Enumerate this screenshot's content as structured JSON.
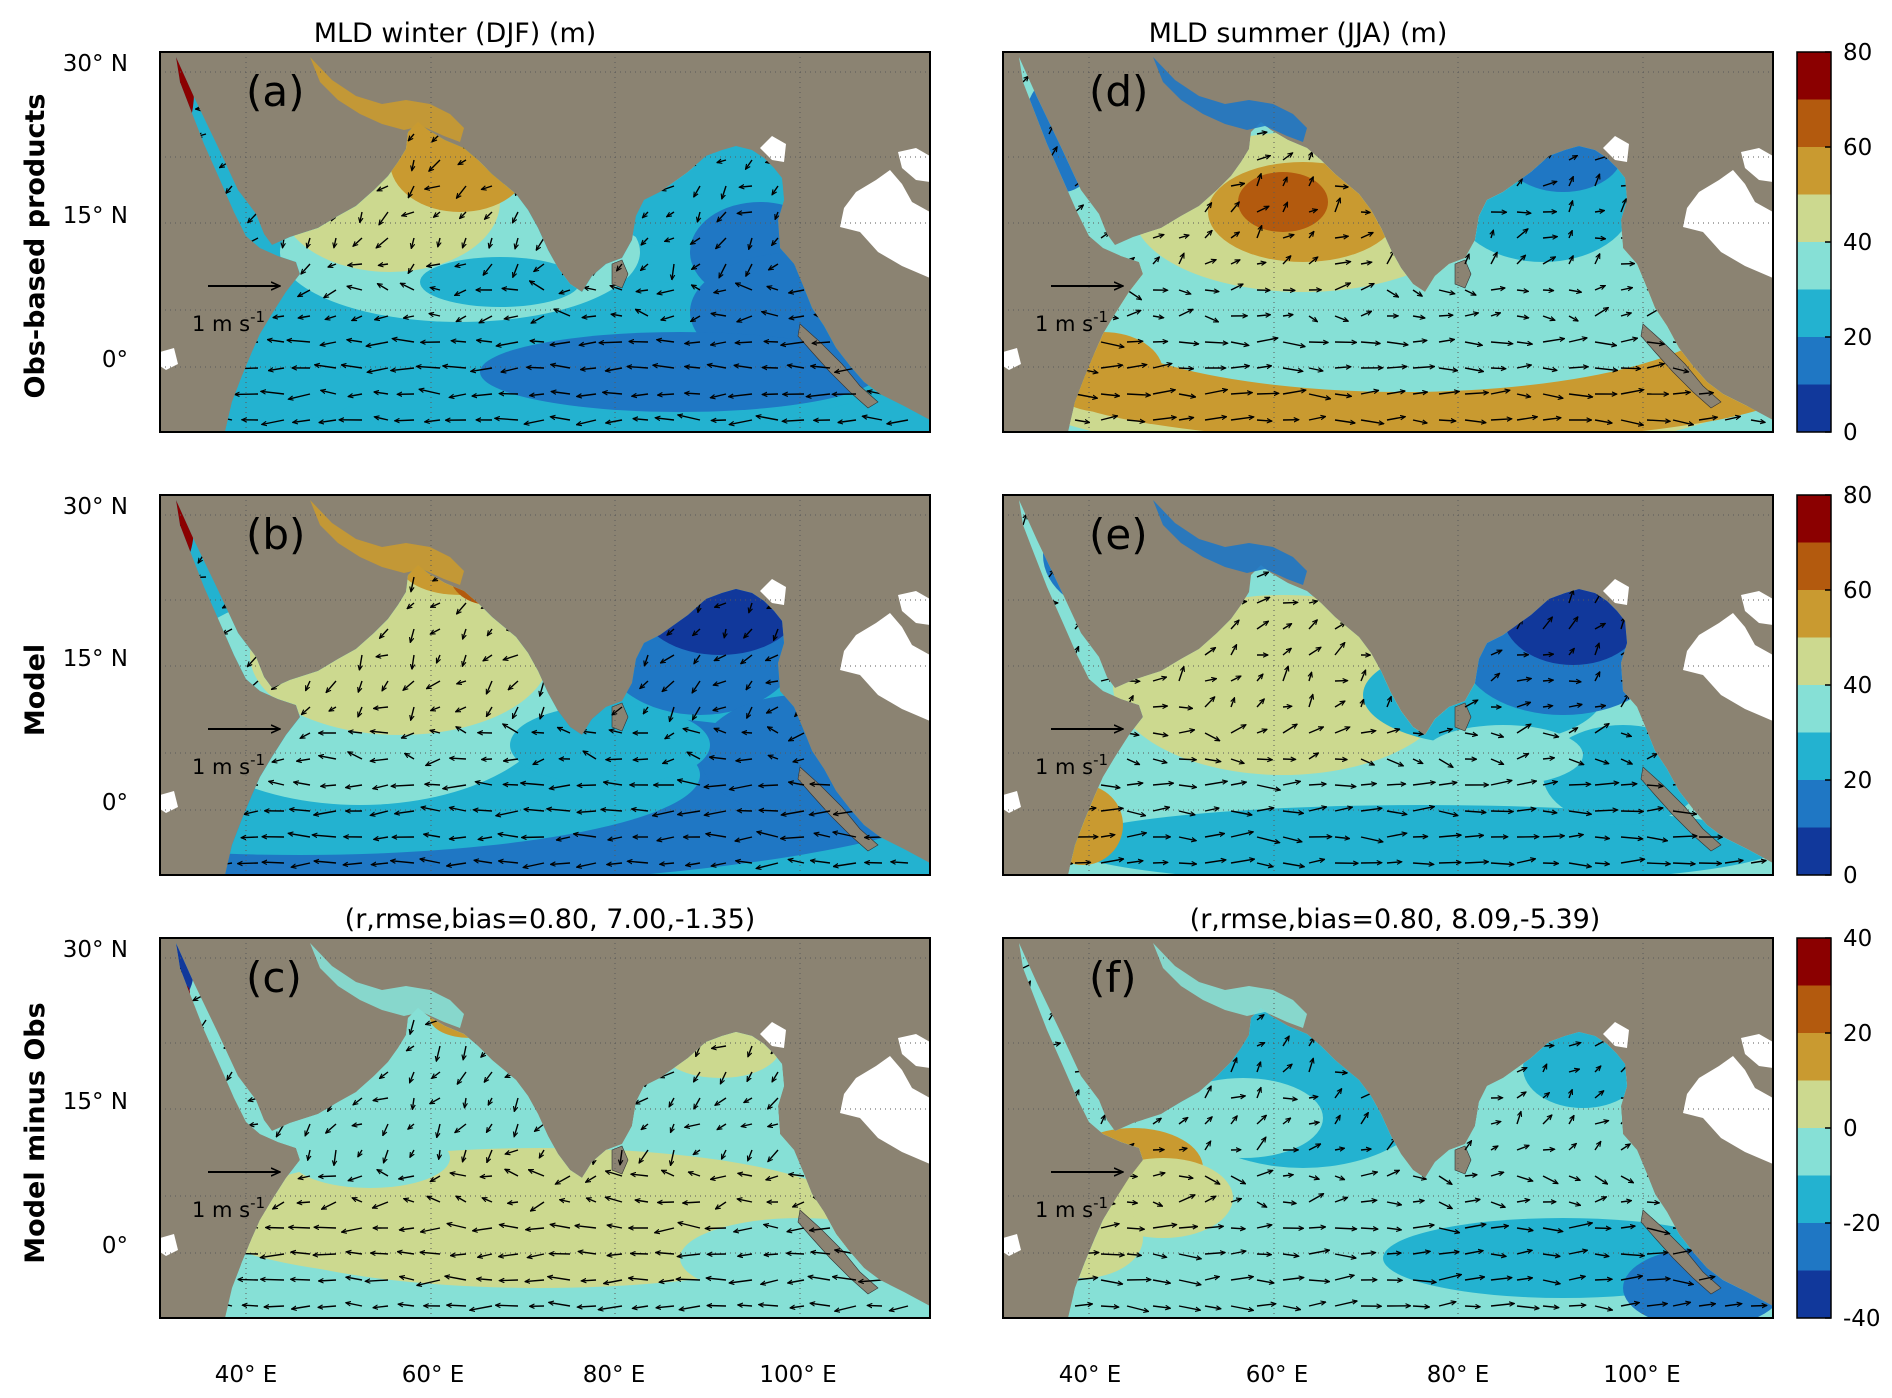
{
  "columns": [
    {
      "title": "MLD winter (DJF) (m)"
    },
    {
      "title": "MLD summer (JJA) (m)"
    }
  ],
  "rows": [
    {
      "label": "Obs-based products",
      "stats": [
        "",
        ""
      ]
    },
    {
      "label": "Model",
      "stats": [
        "",
        ""
      ]
    },
    {
      "label": "Model minus Obs",
      "stats": [
        "(r,rmse,bias=0.80, 7.00,-1.35)",
        "(r,rmse,bias=0.80, 8.09,-5.39)"
      ]
    }
  ],
  "panels": [
    {
      "id": "(a)",
      "row": 0,
      "col": 0
    },
    {
      "id": "(d)",
      "row": 0,
      "col": 1
    },
    {
      "id": "(b)",
      "row": 1,
      "col": 0
    },
    {
      "id": "(e)",
      "row": 1,
      "col": 1
    },
    {
      "id": "(c)",
      "row": 2,
      "col": 0
    },
    {
      "id": "(f)",
      "row": 2,
      "col": 1
    }
  ],
  "lat_ticks": [
    "30° N",
    "15° N",
    "0°"
  ],
  "lon_ticks": [
    "40° E",
    "60° E",
    "80° E",
    "100° E"
  ],
  "vector_scale": {
    "label": "1 m s",
    "exp": "-1"
  },
  "colorbars": [
    {
      "ticks": [
        "80",
        "60",
        "40",
        "20",
        "0"
      ],
      "colors": [
        "#8b0000",
        "#b35a0e",
        "#c99a30",
        "#ccd98f",
        "#86e0d6",
        "#23b2d0",
        "#1f77c4",
        "#11389b"
      ]
    },
    {
      "ticks": [
        "80",
        "60",
        "40",
        "20",
        "0"
      ],
      "colors": [
        "#8b0000",
        "#b35a0e",
        "#c99a30",
        "#ccd98f",
        "#86e0d6",
        "#23b2d0",
        "#1f77c4",
        "#11389b"
      ]
    },
    {
      "ticks": [
        "40",
        "20",
        "0",
        "-20",
        "-40"
      ],
      "colors": [
        "#8b0000",
        "#b35a0e",
        "#c99a30",
        "#ccd98f",
        "#86e0d6",
        "#23b2d0",
        "#1f77c4",
        "#11389b"
      ]
    }
  ],
  "colors": {
    "land": "#8b8372",
    "land_white": "#ffffff",
    "grid": "#5a5a5a"
  }
}
